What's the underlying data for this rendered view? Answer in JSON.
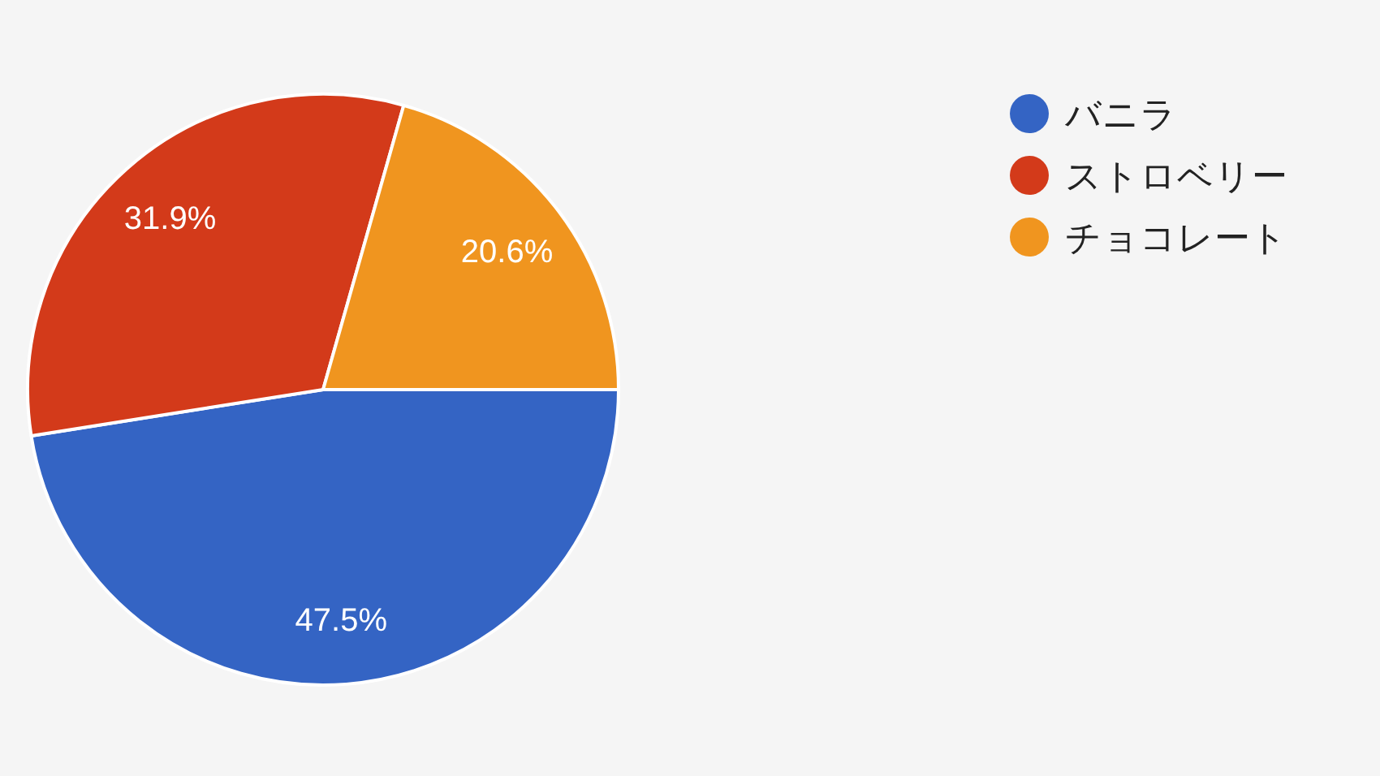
{
  "chart_data": {
    "type": "pie",
    "categories": [
      "バニラ",
      "ストロベリー",
      "チョコレート"
    ],
    "values": [
      47.5,
      31.9,
      20.6
    ],
    "colors": [
      "#3464c4",
      "#d33a1a",
      "#f0951f"
    ],
    "value_labels": [
      "47.5%",
      "31.9%",
      "20.6%"
    ],
    "legend": "top right"
  }
}
